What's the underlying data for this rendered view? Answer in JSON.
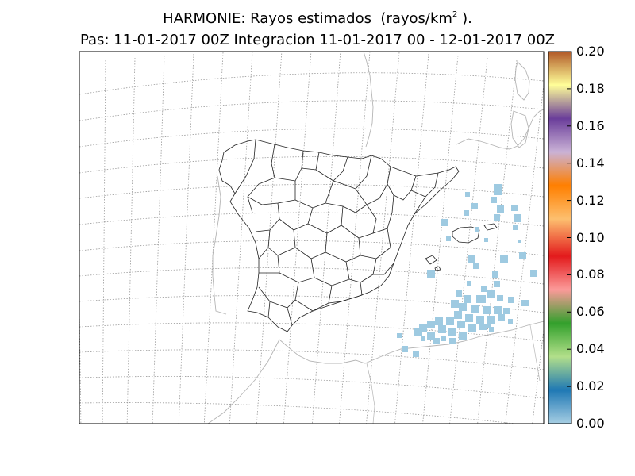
{
  "title": {
    "model": "HARMONIE: Rayos estimados",
    "unit_open": "(rayos/km",
    "unit_exp": "2",
    "unit_close": ").",
    "line2": "Pas: 11-01-2017 00Z Integracion 11-01-2017 00 - 12-01-2017 00Z"
  },
  "colorbar": {
    "ticks": [
      "0.00",
      "0.02",
      "0.04",
      "0.06",
      "0.08",
      "0.10",
      "0.12",
      "0.14",
      "0.16",
      "0.18",
      "0.20"
    ],
    "range": [
      0,
      0.2
    ],
    "colors": [
      "#a6cee3",
      "#1f78b4",
      "#b2df8a",
      "#33a02c",
      "#fb9a99",
      "#e31a1c",
      "#fdbf6f",
      "#ff7f00",
      "#cab2d6",
      "#6a3d9a",
      "#ffff99",
      "#b15928"
    ]
  },
  "map": {
    "region": "Iberian Peninsula and Balearic Sea",
    "lightning_cells_value": 0.0,
    "lightning_cell_color": "#9ecae1",
    "graticule": "dotted"
  }
}
